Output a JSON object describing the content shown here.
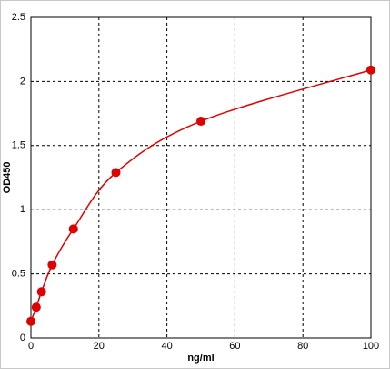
{
  "chart_data": {
    "type": "scatter",
    "xlabel": "ng/ml",
    "ylabel": "OD450",
    "x": [
      0,
      1.56,
      3.12,
      6.25,
      12.5,
      25,
      50,
      100
    ],
    "series": [
      {
        "color": "#e00000",
        "values": [
          0.13,
          0.24,
          0.36,
          0.57,
          0.85,
          1.29,
          1.69,
          2.09
        ]
      }
    ],
    "xlim": [
      0,
      100
    ],
    "xticks": [
      0,
      20,
      40,
      60,
      80,
      100
    ],
    "ylim": [
      0,
      2.5
    ],
    "yticks": [
      0,
      0.5,
      1,
      1.5,
      2,
      2.5
    ],
    "grid": true,
    "line": "smooth"
  }
}
